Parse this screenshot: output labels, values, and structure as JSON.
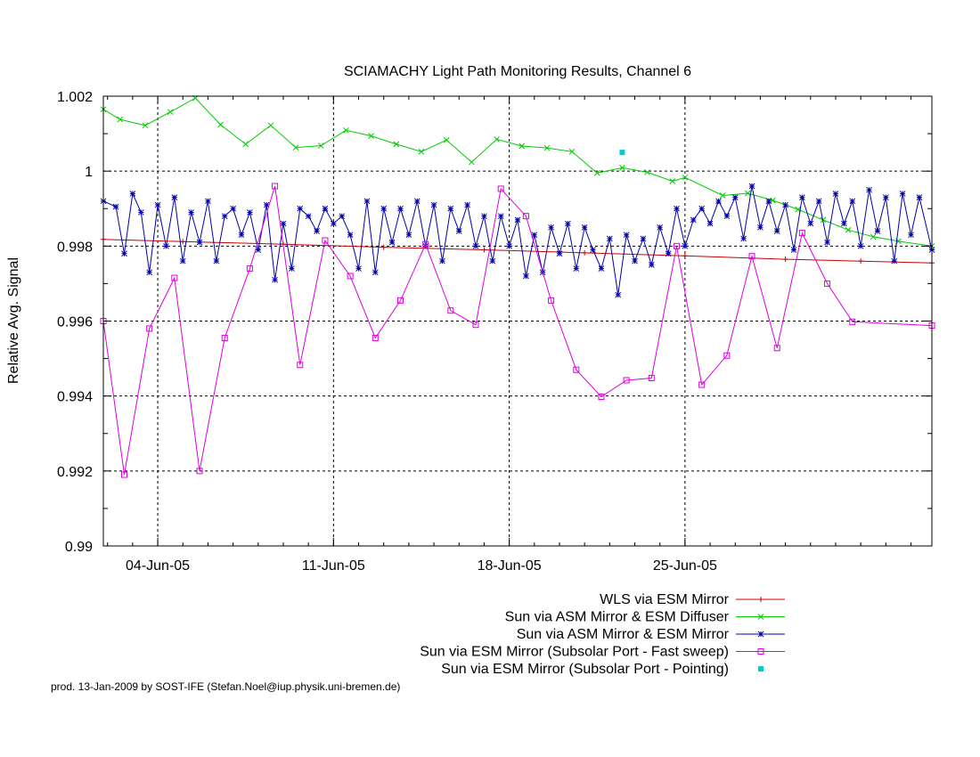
{
  "footer": "prod. 13-Jan-2009 by SOST-IFE (Stefan.Noel@iup.physik.uni-bremen.de)",
  "chart_data": {
    "type": "line",
    "title": "SCIAMACHY Light Path Monitoring Results, Channel 6",
    "ylabel": "Relative Avg. Signal",
    "xlabel": "",
    "xlim": [
      "2005-06-01T20:00",
      "2005-07-04T20:00"
    ],
    "ylim": [
      0.99,
      1.002
    ],
    "x_ticks": [
      {
        "date": "2005-06-04",
        "label": "04-Jun-05"
      },
      {
        "date": "2005-06-11",
        "label": "11-Jun-05"
      },
      {
        "date": "2005-06-18",
        "label": "18-Jun-05"
      },
      {
        "date": "2005-06-25",
        "label": "25-Jun-05"
      }
    ],
    "y_ticks": [
      {
        "value": 0.99,
        "label": "0.99"
      },
      {
        "value": 0.992,
        "label": "0.992"
      },
      {
        "value": 0.994,
        "label": "0.994"
      },
      {
        "value": 0.996,
        "label": "0.996"
      },
      {
        "value": 0.998,
        "label": "0.998"
      },
      {
        "value": 1.0,
        "label": "1"
      },
      {
        "value": 1.002,
        "label": "1.002"
      }
    ],
    "grid": true,
    "legend_position": "bottom-right",
    "series": [
      {
        "name": "WLS via ESM Mirror",
        "color": "#cc0000",
        "marker": "plus",
        "points": [
          [
            "2005-06-01T20:00",
            0.99818
          ],
          [
            "2005-06-05T00:00",
            0.99812
          ],
          [
            "2005-06-09T00:00",
            0.99805
          ],
          [
            "2005-06-13T00:00",
            0.99797
          ],
          [
            "2005-06-17T00:00",
            0.9979
          ],
          [
            "2005-06-21T00:00",
            0.99782
          ],
          [
            "2005-06-25T00:00",
            0.99774
          ],
          [
            "2005-06-29T00:00",
            0.99765
          ],
          [
            "2005-07-02T00:00",
            0.9976
          ],
          [
            "2005-07-04T20:00",
            0.99755
          ]
        ]
      },
      {
        "name": "Sun via ASM Mirror & ESM Diffuser",
        "color": "#00cc00",
        "marker": "cross",
        "points": [
          [
            "2005-06-01T20:00",
            1.00165
          ],
          [
            "2005-06-02T12:00",
            1.00138
          ],
          [
            "2005-06-03T12:00",
            1.00122
          ],
          [
            "2005-06-04T12:00",
            1.00158
          ],
          [
            "2005-06-05T12:00",
            1.00195
          ],
          [
            "2005-06-06T12:00",
            1.00124
          ],
          [
            "2005-06-07T12:00",
            1.00072
          ],
          [
            "2005-06-08T12:00",
            1.00122
          ],
          [
            "2005-06-09T12:00",
            1.00063
          ],
          [
            "2005-06-10T12:00",
            1.00068
          ],
          [
            "2005-06-11T12:00",
            1.00109
          ],
          [
            "2005-06-12T12:00",
            1.00094
          ],
          [
            "2005-06-13T12:00",
            1.00072
          ],
          [
            "2005-06-14T12:00",
            1.00052
          ],
          [
            "2005-06-15T12:00",
            1.00083
          ],
          [
            "2005-06-16T12:00",
            1.00024
          ],
          [
            "2005-06-17T12:00",
            1.00085
          ],
          [
            "2005-06-18T12:00",
            1.00067
          ],
          [
            "2005-06-19T12:00",
            1.00062
          ],
          [
            "2005-06-20T12:00",
            1.00052
          ],
          [
            "2005-06-21T12:00",
            0.99995
          ],
          [
            "2005-06-22T12:00",
            1.00009
          ],
          [
            "2005-06-23T12:00",
            0.99997
          ],
          [
            "2005-06-24T12:00",
            0.99973
          ],
          [
            "2005-06-25T00:00",
            0.99983
          ],
          [
            "2005-06-26T12:00",
            0.99935
          ],
          [
            "2005-06-27T12:00",
            0.99941
          ],
          [
            "2005-06-28T12:00",
            0.99922
          ],
          [
            "2005-06-29T12:00",
            0.99898
          ],
          [
            "2005-06-30T12:00",
            0.9987
          ],
          [
            "2005-07-01T12:00",
            0.99843
          ],
          [
            "2005-07-02T12:00",
            0.99825
          ],
          [
            "2005-07-03T12:00",
            0.99813
          ],
          [
            "2005-07-04T20:00",
            0.998
          ]
        ]
      },
      {
        "name": "Sun via ASM Mirror & ESM Mirror",
        "color": "#0000aa",
        "marker": "star",
        "points": [
          [
            "2005-06-01T20:00",
            0.9992
          ],
          [
            "2005-06-02T08:00",
            0.99905
          ],
          [
            "2005-06-02T16:00",
            0.9978
          ],
          [
            "2005-06-03T00:00",
            0.9994
          ],
          [
            "2005-06-03T08:00",
            0.9989
          ],
          [
            "2005-06-03T16:00",
            0.9973
          ],
          [
            "2005-06-04T00:00",
            0.9991
          ],
          [
            "2005-06-04T08:00",
            0.998
          ],
          [
            "2005-06-04T16:00",
            0.9993
          ],
          [
            "2005-06-05T00:00",
            0.9976
          ],
          [
            "2005-06-05T08:00",
            0.9989
          ],
          [
            "2005-06-05T16:00",
            0.9981
          ],
          [
            "2005-06-06T00:00",
            0.9992
          ],
          [
            "2005-06-06T08:00",
            0.9976
          ],
          [
            "2005-06-06T16:00",
            0.9988
          ],
          [
            "2005-06-07T00:00",
            0.999
          ],
          [
            "2005-06-07T08:00",
            0.9983
          ],
          [
            "2005-06-07T16:00",
            0.9989
          ],
          [
            "2005-06-08T00:00",
            0.9979
          ],
          [
            "2005-06-08T08:00",
            0.9991
          ],
          [
            "2005-06-08T16:00",
            0.9971
          ],
          [
            "2005-06-09T00:00",
            0.9986
          ],
          [
            "2005-06-09T08:00",
            0.9974
          ],
          [
            "2005-06-09T16:00",
            0.999
          ],
          [
            "2005-06-10T00:00",
            0.9988
          ],
          [
            "2005-06-10T08:00",
            0.9984
          ],
          [
            "2005-06-10T16:00",
            0.999
          ],
          [
            "2005-06-11T00:00",
            0.9986
          ],
          [
            "2005-06-11T08:00",
            0.9988
          ],
          [
            "2005-06-11T16:00",
            0.9983
          ],
          [
            "2005-06-12T00:00",
            0.9974
          ],
          [
            "2005-06-12T08:00",
            0.9992
          ],
          [
            "2005-06-12T16:00",
            0.9973
          ],
          [
            "2005-06-13T00:00",
            0.999
          ],
          [
            "2005-06-13T08:00",
            0.9981
          ],
          [
            "2005-06-13T16:00",
            0.999
          ],
          [
            "2005-06-14T00:00",
            0.9983
          ],
          [
            "2005-06-14T08:00",
            0.9992
          ],
          [
            "2005-06-14T16:00",
            0.998
          ],
          [
            "2005-06-15T00:00",
            0.9991
          ],
          [
            "2005-06-15T08:00",
            0.9976
          ],
          [
            "2005-06-15T16:00",
            0.999
          ],
          [
            "2005-06-16T00:00",
            0.9984
          ],
          [
            "2005-06-16T08:00",
            0.9991
          ],
          [
            "2005-06-16T16:00",
            0.998
          ],
          [
            "2005-06-17T00:00",
            0.9988
          ],
          [
            "2005-06-17T08:00",
            0.9976
          ],
          [
            "2005-06-17T16:00",
            0.9988
          ],
          [
            "2005-06-18T00:00",
            0.998
          ],
          [
            "2005-06-18T08:00",
            0.9987
          ],
          [
            "2005-06-18T16:00",
            0.9972
          ],
          [
            "2005-06-19T00:00",
            0.9983
          ],
          [
            "2005-06-19T08:00",
            0.9973
          ],
          [
            "2005-06-19T16:00",
            0.9985
          ],
          [
            "2005-06-20T00:00",
            0.9978
          ],
          [
            "2005-06-20T08:00",
            0.9986
          ],
          [
            "2005-06-20T16:00",
            0.9974
          ],
          [
            "2005-06-21T00:00",
            0.9985
          ],
          [
            "2005-06-21T08:00",
            0.9979
          ],
          [
            "2005-06-21T16:00",
            0.9974
          ],
          [
            "2005-06-22T00:00",
            0.9982
          ],
          [
            "2005-06-22T08:00",
            0.9967
          ],
          [
            "2005-06-22T16:00",
            0.9983
          ],
          [
            "2005-06-23T00:00",
            0.9976
          ],
          [
            "2005-06-23T08:00",
            0.9982
          ],
          [
            "2005-06-23T16:00",
            0.9975
          ],
          [
            "2005-06-24T00:00",
            0.9985
          ],
          [
            "2005-06-24T08:00",
            0.9978
          ],
          [
            "2005-06-24T16:00",
            0.999
          ],
          [
            "2005-06-25T00:00",
            0.998
          ],
          [
            "2005-06-25T08:00",
            0.9987
          ],
          [
            "2005-06-25T16:00",
            0.999
          ],
          [
            "2005-06-26T00:00",
            0.9986
          ],
          [
            "2005-06-26T08:00",
            0.9992
          ],
          [
            "2005-06-26T16:00",
            0.9988
          ],
          [
            "2005-06-27T00:00",
            0.9993
          ],
          [
            "2005-06-27T08:00",
            0.9982
          ],
          [
            "2005-06-27T16:00",
            0.9996
          ],
          [
            "2005-06-28T00:00",
            0.9985
          ],
          [
            "2005-06-28T08:00",
            0.9992
          ],
          [
            "2005-06-28T16:00",
            0.9984
          ],
          [
            "2005-06-29T00:00",
            0.9991
          ],
          [
            "2005-06-29T08:00",
            0.9979
          ],
          [
            "2005-06-29T16:00",
            0.9993
          ],
          [
            "2005-06-30T00:00",
            0.9986
          ],
          [
            "2005-06-30T08:00",
            0.9992
          ],
          [
            "2005-06-30T16:00",
            0.9981
          ],
          [
            "2005-07-01T00:00",
            0.9994
          ],
          [
            "2005-07-01T08:00",
            0.9986
          ],
          [
            "2005-07-01T16:00",
            0.9992
          ],
          [
            "2005-07-02T00:00",
            0.998
          ],
          [
            "2005-07-02T08:00",
            0.9995
          ],
          [
            "2005-07-02T16:00",
            0.9984
          ],
          [
            "2005-07-03T00:00",
            0.9993
          ],
          [
            "2005-07-03T08:00",
            0.9976
          ],
          [
            "2005-07-03T16:00",
            0.9994
          ],
          [
            "2005-07-04T00:00",
            0.9983
          ],
          [
            "2005-07-04T08:00",
            0.9993
          ],
          [
            "2005-07-04T20:00",
            0.9979
          ]
        ]
      },
      {
        "name": "Sun via ESM Mirror (Subsolar Port - Fast sweep)",
        "color": "#dd00dd",
        "marker": "square",
        "points": [
          [
            "2005-06-01T20:00",
            0.996
          ],
          [
            "2005-06-02T16:00",
            0.9919
          ],
          [
            "2005-06-03T16:00",
            0.9958
          ],
          [
            "2005-06-04T16:00",
            0.99715
          ],
          [
            "2005-06-05T16:00",
            0.992
          ],
          [
            "2005-06-06T16:00",
            0.99555
          ],
          [
            "2005-06-07T16:00",
            0.9974
          ],
          [
            "2005-06-08T16:00",
            0.9996
          ],
          [
            "2005-06-09T16:00",
            0.99483
          ],
          [
            "2005-06-10T16:00",
            0.99815
          ],
          [
            "2005-06-11T16:00",
            0.9972
          ],
          [
            "2005-06-12T16:00",
            0.99555
          ],
          [
            "2005-06-13T16:00",
            0.99655
          ],
          [
            "2005-06-14T16:00",
            0.99805
          ],
          [
            "2005-06-15T16:00",
            0.99628
          ],
          [
            "2005-06-16T16:00",
            0.9959
          ],
          [
            "2005-06-17T16:00",
            0.99953
          ],
          [
            "2005-06-18T16:00",
            0.9988
          ],
          [
            "2005-06-19T16:00",
            0.99655
          ],
          [
            "2005-06-20T16:00",
            0.9947
          ],
          [
            "2005-06-21T16:00",
            0.99398
          ],
          [
            "2005-06-22T16:00",
            0.99442
          ],
          [
            "2005-06-23T16:00",
            0.99448
          ],
          [
            "2005-06-24T16:00",
            0.998
          ],
          [
            "2005-06-25T16:00",
            0.9943
          ],
          [
            "2005-06-26T16:00",
            0.99508
          ],
          [
            "2005-06-27T16:00",
            0.99773
          ],
          [
            "2005-06-28T16:00",
            0.99528
          ],
          [
            "2005-06-29T16:00",
            0.99835
          ],
          [
            "2005-06-30T16:00",
            0.997
          ],
          [
            "2005-07-01T16:00",
            0.99598
          ],
          [
            "2005-07-04T20:00",
            0.99588
          ]
        ]
      },
      {
        "name": "Sun via ESM Mirror (Subsolar Port - Pointing)",
        "color": "#00cccc",
        "marker": "dot",
        "points": [
          [
            "2005-06-22T12:00",
            1.0005
          ]
        ]
      }
    ]
  }
}
